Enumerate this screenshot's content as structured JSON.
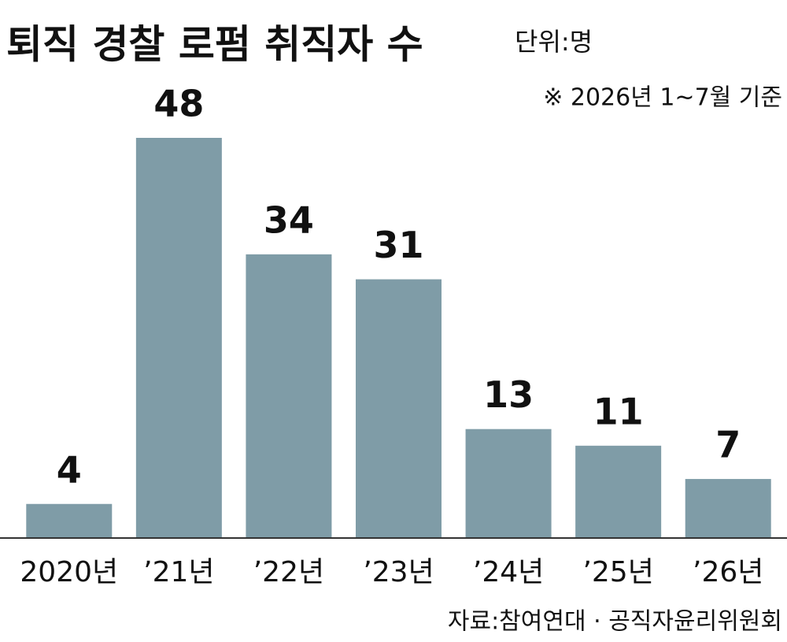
{
  "chart_data": {
    "type": "bar",
    "title": "퇴직 경찰 로펌 취직자 수",
    "unit": "단위:명",
    "note": "※ 2026년 1~7월 기준",
    "categories": [
      "2020년",
      "’21년",
      "’22년",
      "’23년",
      "’24년",
      "’25년",
      "’26년"
    ],
    "values": [
      4,
      48,
      34,
      31,
      13,
      11,
      7
    ],
    "color": "#7f9ca7",
    "source": "자료:참여연대 · 공직자윤리위원회"
  }
}
